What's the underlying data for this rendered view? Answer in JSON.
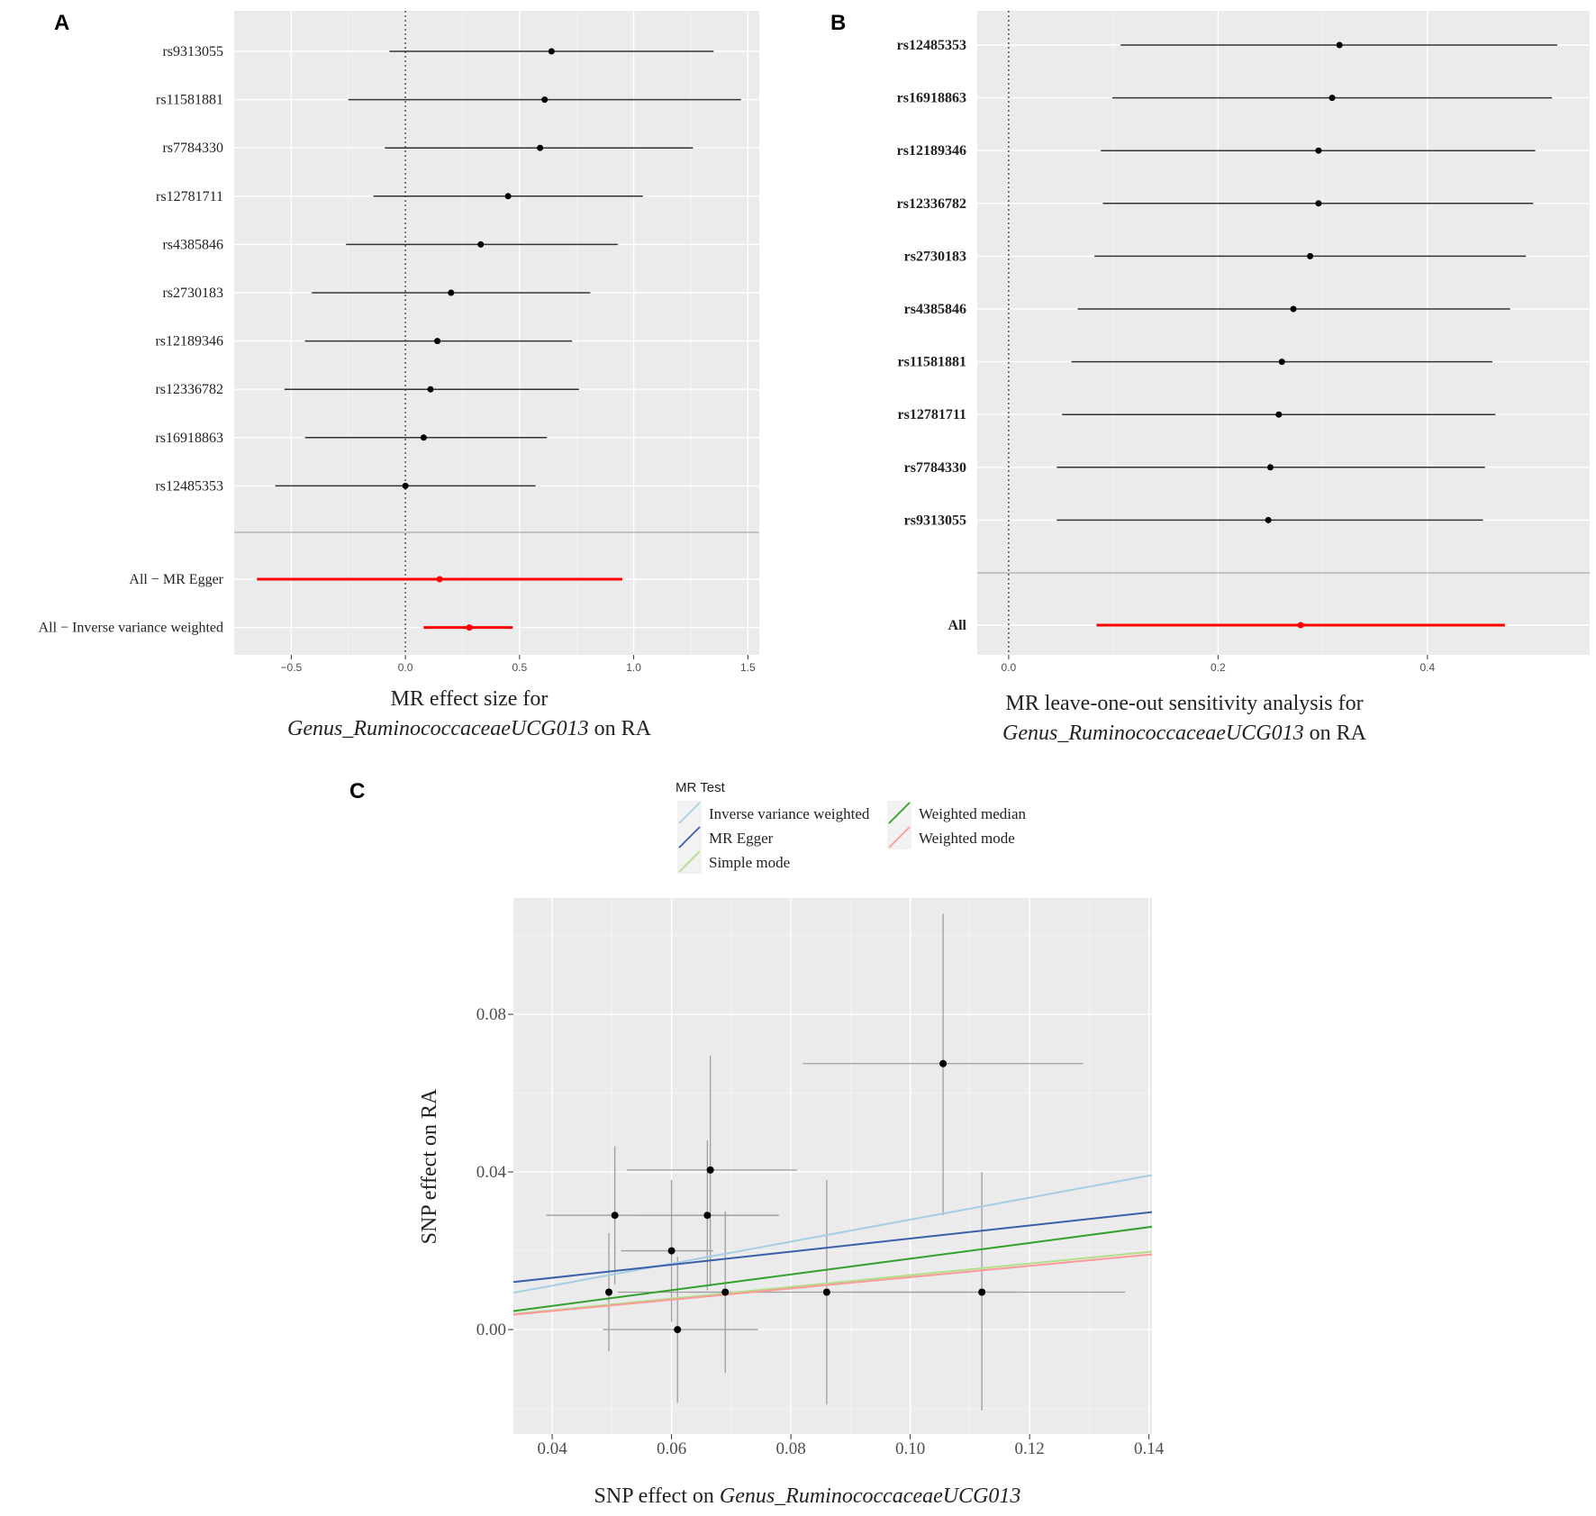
{
  "chart_data": [
    {
      "panel": "A",
      "type": "scatter",
      "subtype": "forest",
      "title_lines": [
        {
          "parts": [
            {
              "text": "MR effect size for",
              "italic": false
            }
          ]
        },
        {
          "parts": [
            {
              "text": "Genus_RuminococcaceaeUCG013",
              "italic": true
            },
            {
              "text": " on RA",
              "italic": false
            }
          ]
        }
      ],
      "xlim": [
        -0.75,
        1.55
      ],
      "xticks": [
        -0.5,
        0.0,
        0.5,
        1.0,
        1.5
      ],
      "xtick_labels": [
        "−0.5",
        "0.0",
        "0.5",
        "1.0",
        "1.5"
      ],
      "snps": [
        {
          "label": "rs9313055",
          "est": 0.64,
          "lo": -0.07,
          "hi": 1.35
        },
        {
          "label": "rs11581881",
          "est": 0.61,
          "lo": -0.25,
          "hi": 1.47
        },
        {
          "label": "rs7784330",
          "est": 0.59,
          "lo": -0.09,
          "hi": 1.26
        },
        {
          "label": "rs12781711",
          "est": 0.45,
          "lo": -0.14,
          "hi": 1.04
        },
        {
          "label": "rs4385846",
          "est": 0.33,
          "lo": -0.26,
          "hi": 0.93
        },
        {
          "label": "rs2730183",
          "est": 0.2,
          "lo": -0.41,
          "hi": 0.81
        },
        {
          "label": "rs12189346",
          "est": 0.14,
          "lo": -0.44,
          "hi": 0.73
        },
        {
          "label": "rs12336782",
          "est": 0.11,
          "lo": -0.53,
          "hi": 0.76
        },
        {
          "label": "rs16918863",
          "est": 0.08,
          "lo": -0.44,
          "hi": 0.62
        },
        {
          "label": "rs12485353",
          "est": 0.0,
          "lo": -0.57,
          "hi": 0.57
        }
      ],
      "summary": [
        {
          "label": "All − MR Egger",
          "est": 0.15,
          "lo": -0.65,
          "hi": 0.95,
          "color": "#ff0000"
        },
        {
          "label": "All − Inverse variance weighted",
          "est": 0.28,
          "lo": 0.08,
          "hi": 0.47,
          "color": "#ff0000"
        }
      ]
    },
    {
      "panel": "B",
      "type": "scatter",
      "subtype": "leave-one-out",
      "title_lines": [
        {
          "parts": [
            {
              "text": "MR leave-one-out sensitivity analysis for",
              "italic": false
            }
          ]
        },
        {
          "parts": [
            {
              "text": "Genus_RuminococcaceaeUCG013",
              "italic": true
            },
            {
              "text": " on RA",
              "italic": false
            }
          ]
        }
      ],
      "xlim": [
        -0.03,
        0.555
      ],
      "xticks": [
        0.0,
        0.2,
        0.4
      ],
      "xtick_labels": [
        "0.0",
        "0.2",
        "0.4"
      ],
      "snps": [
        {
          "label": "rs12485353",
          "est": 0.316,
          "lo": 0.107,
          "hi": 0.524
        },
        {
          "label": "rs16918863",
          "est": 0.309,
          "lo": 0.099,
          "hi": 0.519
        },
        {
          "label": "rs12189346",
          "est": 0.296,
          "lo": 0.088,
          "hi": 0.503
        },
        {
          "label": "rs12336782",
          "est": 0.296,
          "lo": 0.09,
          "hi": 0.501
        },
        {
          "label": "rs2730183",
          "est": 0.288,
          "lo": 0.082,
          "hi": 0.494
        },
        {
          "label": "rs4385846",
          "est": 0.272,
          "lo": 0.066,
          "hi": 0.479
        },
        {
          "label": "rs11581881",
          "est": 0.261,
          "lo": 0.06,
          "hi": 0.462
        },
        {
          "label": "rs12781711",
          "est": 0.258,
          "lo": 0.051,
          "hi": 0.465
        },
        {
          "label": "rs7784330",
          "est": 0.25,
          "lo": 0.046,
          "hi": 0.455
        },
        {
          "label": "rs9313055",
          "est": 0.248,
          "lo": 0.046,
          "hi": 0.453
        }
      ],
      "summary": [
        {
          "label": "All",
          "est": 0.279,
          "lo": 0.084,
          "hi": 0.474,
          "color": "#ff0000"
        }
      ]
    },
    {
      "panel": "C",
      "type": "scatter",
      "xlabel_parts": [
        {
          "text": "SNP effect on ",
          "italic": false
        },
        {
          "text": "Genus_RuminococcaceaeUCG013",
          "italic": true
        }
      ],
      "ylabel": "SNP effect on RA",
      "xlim": [
        0.0335,
        0.1405
      ],
      "ylim": [
        -0.0265,
        0.1095
      ],
      "xticks": [
        0.04,
        0.06,
        0.08,
        0.1,
        0.12,
        0.14
      ],
      "xtick_labels": [
        "0.04",
        "0.06",
        "0.08",
        "0.10",
        "0.12",
        "0.14"
      ],
      "yticks": [
        0.0,
        0.04,
        0.08
      ],
      "ytick_labels": [
        "0.00",
        "0.04",
        "0.08"
      ],
      "points": [
        {
          "x": 0.0495,
          "y": 0.0095,
          "xlo": 0.0495,
          "xhi": 0.0495,
          "ylo": -0.0055,
          "yhi": 0.0245
        },
        {
          "x": 0.0505,
          "y": 0.029,
          "xlo": 0.039,
          "xhi": 0.078,
          "ylo": 0.0115,
          "yhi": 0.0465
        },
        {
          "x": 0.06,
          "y": 0.02,
          "xlo": 0.0515,
          "xhi": 0.067,
          "ylo": 0.002,
          "yhi": 0.038
        },
        {
          "x": 0.061,
          "y": 0.0,
          "xlo": 0.0485,
          "xhi": 0.0745,
          "ylo": -0.0185,
          "yhi": 0.0185
        },
        {
          "x": 0.066,
          "y": 0.029,
          "xlo": 0.0545,
          "xhi": 0.0775,
          "ylo": 0.01,
          "yhi": 0.048
        },
        {
          "x": 0.0665,
          "y": 0.0405,
          "xlo": 0.0525,
          "xhi": 0.081,
          "ylo": 0.011,
          "yhi": 0.0695
        },
        {
          "x": 0.069,
          "y": 0.0095,
          "xlo": 0.063,
          "xhi": 0.075,
          "ylo": -0.011,
          "yhi": 0.03
        },
        {
          "x": 0.086,
          "y": 0.0095,
          "xlo": 0.051,
          "xhi": 0.118,
          "ylo": -0.019,
          "yhi": 0.038
        },
        {
          "x": 0.1055,
          "y": 0.0675,
          "xlo": 0.082,
          "xhi": 0.129,
          "ylo": 0.029,
          "yhi": 0.1055
        },
        {
          "x": 0.112,
          "y": 0.0095,
          "xlo": 0.089,
          "xhi": 0.136,
          "ylo": -0.0205,
          "yhi": 0.04
        }
      ],
      "legend_title": "MR Test",
      "lines": [
        {
          "name": "Inverse variance weighted",
          "intercept": 0.0,
          "slope": 0.279,
          "color": "#a6cee3"
        },
        {
          "name": "MR Egger",
          "intercept": 0.0065,
          "slope": 0.166,
          "color": "#3a5fa8"
        },
        {
          "name": "Simple mode",
          "intercept": -0.001,
          "slope": 0.148,
          "color": "#b2df8a"
        },
        {
          "name": "Weighted median",
          "intercept": -0.002,
          "slope": 0.2,
          "color": "#33a02c"
        },
        {
          "name": "Weighted mode",
          "intercept": -0.001,
          "slope": 0.143,
          "color": "#fb9a99"
        }
      ]
    }
  ],
  "panel_labels": {
    "a": "A",
    "b": "B",
    "c": "C"
  }
}
